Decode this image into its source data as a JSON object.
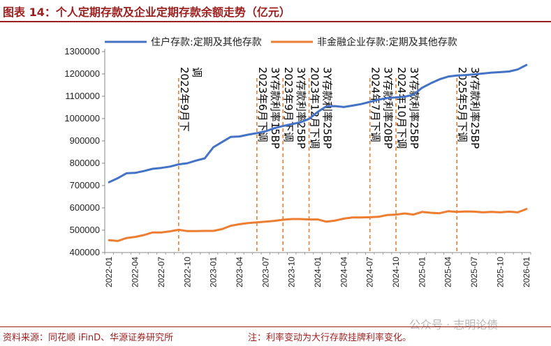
{
  "title": "图表 14：个人定期存款及企业定期存款余额走势（亿元）",
  "footer": {
    "source": "资料来源：同花顺 iFinD、华源证券研究所",
    "note": "注：利率变动为大行存款挂牌利率变化。"
  },
  "watermark": "公众号 · 志明论债",
  "colors": {
    "accent": "#9c1f1f",
    "household": "#4472c4",
    "enterprise": "#ed7d31",
    "annotation_line": "#ed7d31"
  },
  "chart_data": {
    "type": "line",
    "title": "个人定期存款及企业定期存款余额走势（亿元）",
    "ylim": [
      400000,
      1300000
    ],
    "yticks": [
      400000,
      500000,
      600000,
      700000,
      800000,
      900000,
      1000000,
      1100000,
      1200000,
      1300000
    ],
    "x": [
      "2022-01",
      "2022-02",
      "2022-03",
      "2022-04",
      "2022-05",
      "2022-06",
      "2022-07",
      "2022-08",
      "2022-09",
      "2022-10",
      "2022-11",
      "2022-12",
      "2023-01",
      "2023-02",
      "2023-03",
      "2023-04",
      "2023-05",
      "2023-06",
      "2023-07",
      "2023-08",
      "2023-09",
      "2023-10",
      "2023-11",
      "2023-12",
      "2024-01",
      "2024-02",
      "2024-03",
      "2024-04",
      "2024-05",
      "2024-06",
      "2024-07",
      "2024-08",
      "2024-09",
      "2024-10",
      "2024-11",
      "2024-12",
      "2025-01",
      "2025-02",
      "2025-03",
      "2025-04",
      "2025-05",
      "2025-06",
      "2025-07",
      "2025-08",
      "2025-09",
      "2025-10",
      "2025-11",
      "2025-12",
      "2026-01"
    ],
    "xtick_labels": [
      "2022-01",
      "2022-04",
      "2022-07",
      "2022-10",
      "2023-01",
      "2023-04",
      "2023-07",
      "2023-10",
      "2024-01",
      "2024-04",
      "2024-07",
      "2024-10",
      "2025-01",
      "2025-04",
      "2025-07",
      "2025-10",
      "2026-01"
    ],
    "series": [
      {
        "name": "住户存款:定期及其他存款",
        "values": [
          715000,
          733000,
          755000,
          757000,
          765000,
          775000,
          779000,
          785000,
          795000,
          800000,
          812000,
          822000,
          872000,
          895000,
          918000,
          920000,
          928000,
          935000,
          943000,
          957000,
          967000,
          975000,
          983000,
          999000,
          1030000,
          1055000,
          1056000,
          1052000,
          1058000,
          1065000,
          1075000,
          1085000,
          1092000,
          1095000,
          1098000,
          1107000,
          1138000,
          1158000,
          1176000,
          1188000,
          1193000,
          1195000,
          1198000,
          1202000,
          1206000,
          1208000,
          1211000,
          1220000,
          1240000
        ]
      },
      {
        "name": "非金融企业存款:定期及其他存款",
        "values": [
          455000,
          452000,
          465000,
          470000,
          478000,
          490000,
          490000,
          495000,
          502000,
          496000,
          496000,
          497000,
          497000,
          505000,
          520000,
          527000,
          532000,
          535000,
          538000,
          542000,
          547000,
          550000,
          550000,
          548000,
          548000,
          538000,
          543000,
          552000,
          557000,
          557000,
          558000,
          560000,
          568000,
          570000,
          575000,
          570000,
          582000,
          578000,
          576000,
          585000,
          582000,
          584000,
          583000,
          580000,
          582000,
          580000,
          583000,
          580000,
          595000
        ]
      }
    ],
    "annotations": [
      {
        "x": "2022-09",
        "lines": [
          "2022年9月下",
          "调"
        ]
      },
      {
        "x": "2023-06",
        "lines": [
          "2023年6月下调",
          "3Y存款利率15BP"
        ]
      },
      {
        "x": "2023-09",
        "lines": [
          "2023年9月下调",
          "3Y存款利率25BP"
        ]
      },
      {
        "x": "2023-12",
        "lines": [
          "2023年12月下调",
          "3Y存款利率25BP"
        ]
      },
      {
        "x": "2024-07",
        "lines": [
          "2024年7月下调",
          "3Y存款利率20BP"
        ]
      },
      {
        "x": "2024-10",
        "lines": [
          "2024年10月下调",
          "3Y存款利率25BP"
        ]
      },
      {
        "x": "2025-05",
        "lines": [
          "2025年5月下调",
          "3Y存款利率25BP"
        ]
      }
    ]
  }
}
